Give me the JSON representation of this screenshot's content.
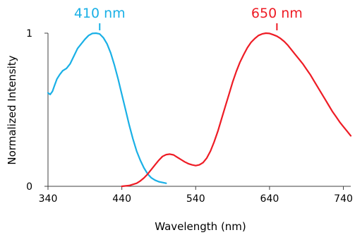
{
  "chart_data": {
    "type": "line",
    "xlabel": "Wavelength (nm)",
    "ylabel": "Normalized Intensity",
    "xlim": [
      340,
      750
    ],
    "ylim": [
      0,
      1
    ],
    "x_ticks": [
      "340",
      "440",
      "540",
      "640",
      "740"
    ],
    "y_ticks": [
      "0",
      "1"
    ],
    "grid": false,
    "legend": "none",
    "series": [
      {
        "color": "#1ab0e6",
        "x": [
          340,
          343,
          346,
          349,
          352,
          356,
          360,
          365,
          370,
          375,
          380,
          385,
          390,
          395,
          400,
          405,
          410,
          415,
          420,
          425,
          430,
          435,
          440,
          445,
          450,
          455,
          460,
          465,
          470,
          475,
          480,
          485,
          490,
          495,
          500
        ],
        "y": [
          0.61,
          0.6,
          0.62,
          0.66,
          0.7,
          0.73,
          0.755,
          0.77,
          0.8,
          0.85,
          0.9,
          0.93,
          0.96,
          0.985,
          0.998,
          1.0,
          0.995,
          0.97,
          0.93,
          0.87,
          0.79,
          0.7,
          0.6,
          0.5,
          0.4,
          0.31,
          0.23,
          0.17,
          0.12,
          0.08,
          0.055,
          0.04,
          0.03,
          0.025,
          0.02
        ]
      },
      {
        "color": "#ee1c25",
        "x": [
          440,
          450,
          460,
          465,
          470,
          475,
          480,
          485,
          490,
          495,
          500,
          505,
          510,
          515,
          520,
          525,
          530,
          535,
          540,
          545,
          550,
          555,
          560,
          565,
          570,
          575,
          580,
          585,
          590,
          595,
          600,
          605,
          610,
          615,
          620,
          625,
          630,
          635,
          640,
          645,
          650,
          655,
          660,
          665,
          670,
          675,
          680,
          685,
          690,
          695,
          700,
          705,
          710,
          715,
          720,
          725,
          730,
          735,
          740,
          745,
          750
        ],
        "y": [
          0.0,
          0.005,
          0.02,
          0.035,
          0.055,
          0.08,
          0.11,
          0.14,
          0.17,
          0.195,
          0.207,
          0.21,
          0.205,
          0.19,
          0.175,
          0.16,
          0.148,
          0.14,
          0.135,
          0.14,
          0.155,
          0.185,
          0.23,
          0.29,
          0.36,
          0.44,
          0.52,
          0.6,
          0.68,
          0.75,
          0.81,
          0.86,
          0.905,
          0.94,
          0.965,
          0.985,
          0.995,
          1.0,
          0.998,
          0.99,
          0.98,
          0.965,
          0.945,
          0.92,
          0.89,
          0.86,
          0.83,
          0.8,
          0.765,
          0.73,
          0.69,
          0.65,
          0.61,
          0.57,
          0.53,
          0.49,
          0.455,
          0.42,
          0.39,
          0.36,
          0.33
        ]
      }
    ],
    "annotations": [
      {
        "text": "410 nm",
        "x": 410,
        "color": "#1ab0e6"
      },
      {
        "text": "650 nm",
        "x": 650,
        "color": "#ee1c25"
      }
    ]
  }
}
